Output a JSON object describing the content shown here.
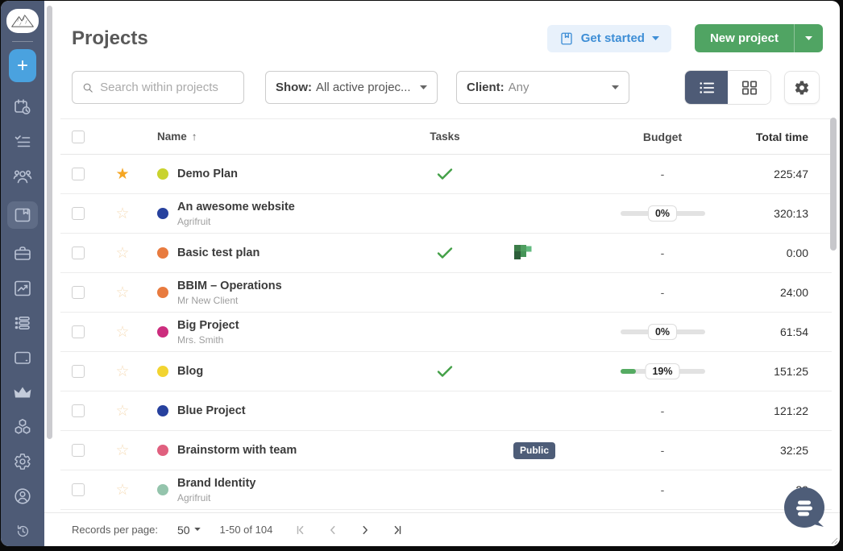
{
  "theme": {
    "sidebar_bg": "#4e5b76",
    "accent_blue": "#4aa2df",
    "button_green": "#50a463",
    "get_started_blue": "#3e8ed6",
    "check_green": "#43a047",
    "star_orange": "#f5a623",
    "badge_navy": "#4e5d78",
    "progress_green": "#55ab62"
  },
  "sidebar": {
    "logo": "mountain-logo",
    "add_label": "+",
    "items": [
      {
        "id": "schedule",
        "icon": "calendar-clock-icon",
        "active": false
      },
      {
        "id": "tasks",
        "icon": "checklist-icon",
        "active": false
      },
      {
        "id": "team",
        "icon": "team-icon",
        "active": false
      },
      {
        "id": "projects",
        "icon": "projects-folder-icon",
        "active": true
      },
      {
        "id": "clients",
        "icon": "briefcase-icon",
        "active": false
      },
      {
        "id": "reports",
        "icon": "chart-icon",
        "active": false
      },
      {
        "id": "timesheet",
        "icon": "timesheet-icon",
        "active": false
      },
      {
        "id": "expenses",
        "icon": "card-icon",
        "active": false
      },
      {
        "id": "upgrade",
        "icon": "crown-icon",
        "active": false
      },
      {
        "id": "integrations",
        "icon": "blocks-icon",
        "active": false
      },
      {
        "id": "settings",
        "icon": "gear-icon",
        "active": false
      },
      {
        "id": "profile",
        "icon": "user-circle-icon",
        "active": false
      },
      {
        "id": "history",
        "icon": "history-icon",
        "active": false
      }
    ]
  },
  "header": {
    "title": "Projects",
    "get_started": "Get started",
    "new_project": "New project"
  },
  "toolbar": {
    "search_placeholder": "Search within projects",
    "show_label": "Show:",
    "show_value": "All active projec...",
    "client_label": "Client:",
    "client_value": "Any"
  },
  "table": {
    "headers": {
      "name": "Name",
      "tasks": "Tasks",
      "budget": "Budget",
      "total_time": "Total time"
    },
    "sort_arrow": "↑",
    "rows": [
      {
        "name": "Demo Plan",
        "client": "",
        "color": "#c9d32e",
        "starred": true,
        "task_done": true,
        "integration": "",
        "badge": "",
        "budget_type": "dash",
        "progress_pct": null,
        "total_time": "225:47"
      },
      {
        "name": "An awesome website",
        "client": "Agrifruit",
        "color": "#27419e",
        "starred": false,
        "task_done": false,
        "integration": "",
        "badge": "",
        "budget_type": "bar",
        "progress_pct": 0,
        "total_time": "320:13"
      },
      {
        "name": "Basic test plan",
        "client": "",
        "color": "#e87b3f",
        "starred": false,
        "task_done": true,
        "integration": "planner",
        "badge": "",
        "budget_type": "dash",
        "progress_pct": null,
        "total_time": "0:00"
      },
      {
        "name": "BBIM – Operations",
        "client": "Mr New Client",
        "color": "#e87b3f",
        "starred": false,
        "task_done": false,
        "integration": "",
        "badge": "",
        "budget_type": "dash",
        "progress_pct": null,
        "total_time": "24:00"
      },
      {
        "name": "Big Project",
        "client": "Mrs. Smith",
        "color": "#cc2d7e",
        "starred": false,
        "task_done": false,
        "integration": "",
        "badge": "",
        "budget_type": "bar",
        "progress_pct": 0,
        "total_time": "61:54"
      },
      {
        "name": "Blog",
        "client": "",
        "color": "#f2d431",
        "starred": false,
        "task_done": true,
        "integration": "",
        "badge": "",
        "budget_type": "bar",
        "progress_pct": 19,
        "total_time": "151:25"
      },
      {
        "name": "Blue Project",
        "client": "",
        "color": "#27419e",
        "starred": false,
        "task_done": false,
        "integration": "",
        "badge": "",
        "budget_type": "dash",
        "progress_pct": null,
        "total_time": "121:22"
      },
      {
        "name": "Brainstorm with team",
        "client": "",
        "color": "#e0607f",
        "starred": false,
        "task_done": false,
        "integration": "",
        "badge": "Public",
        "budget_type": "dash",
        "progress_pct": null,
        "total_time": "32:25"
      },
      {
        "name": "Brand Identity",
        "client": "Agrifruit",
        "color": "#94c4ac",
        "starred": false,
        "task_done": false,
        "integration": "",
        "badge": "",
        "budget_type": "dash",
        "progress_pct": null,
        "total_time": "29"
      }
    ]
  },
  "footer": {
    "records_label": "Records per page:",
    "page_size": "50",
    "range": "1-50 of 104"
  }
}
